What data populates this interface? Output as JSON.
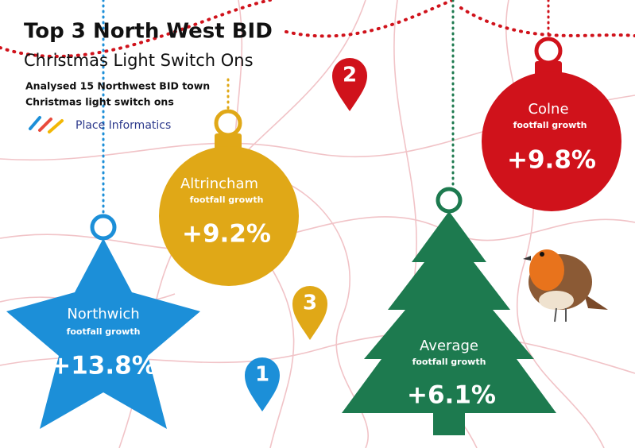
{
  "header": {
    "title": "Top 3 North West BID",
    "subtitle": "Christmas Light Switch Ons",
    "description": [
      "Analysed 15 Northwest BID town",
      "Christmas light switch ons"
    ],
    "brand": "Place Informatics"
  },
  "items": [
    {
      "name": "Northwich",
      "label": "footfall growth",
      "value": "+13.8%"
    },
    {
      "name": "Altrincham",
      "label": "footfall growth",
      "value": "+9.2%"
    },
    {
      "name": "Colne",
      "label": "footfall growth",
      "value": "+9.8%"
    },
    {
      "name": "Average",
      "label": "footfall growth",
      "value": "+6.1%"
    }
  ],
  "pins": [
    "1",
    "2",
    "3"
  ]
}
